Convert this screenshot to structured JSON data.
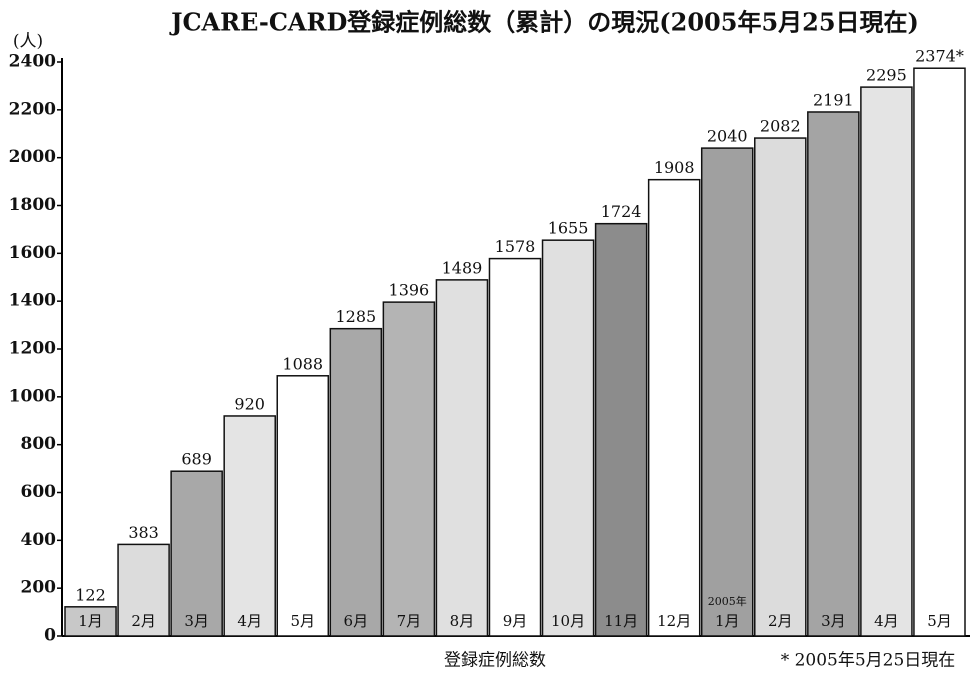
{
  "chart_data": {
    "type": "bar",
    "title": "JCARE-CARD登録症例総数（累計）の現況(2005年5月25日現在)",
    "y_unit": "(人)",
    "xlabel": "登録症例総数",
    "annotation": "* 2005年5月25日現在",
    "year_label": "2005年",
    "categories": [
      "1月",
      "2月",
      "3月",
      "4月",
      "5月",
      "6月",
      "7月",
      "8月",
      "9月",
      "10月",
      "11月",
      "12月",
      "1月",
      "2月",
      "3月",
      "4月",
      "5月"
    ],
    "values": [
      122,
      383,
      689,
      920,
      1088,
      1285,
      1396,
      1489,
      1578,
      1655,
      1724,
      1908,
      2040,
      2082,
      2191,
      2295,
      2374
    ],
    "value_labels": [
      "122",
      "383",
      "689",
      "920",
      "1088",
      "1285",
      "1396",
      "1489",
      "1578",
      "1655",
      "1724",
      "1908",
      "2040",
      "2082",
      "2191",
      "2295",
      "2374*"
    ],
    "colors": [
      "#c8c8c8",
      "#dcdcdc",
      "#a8a8a8",
      "#e4e4e4",
      "#ffffff",
      "#a8a8a8",
      "#b4b4b4",
      "#e0e0e0",
      "#ffffff",
      "#e0e0e0",
      "#8c8c8c",
      "#ffffff",
      "#a0a0a0",
      "#dcdcdc",
      "#a4a4a4",
      "#e4e4e4",
      "#ffffff"
    ],
    "ylim": [
      0,
      2400
    ],
    "yticks": [
      0,
      200,
      400,
      600,
      800,
      1000,
      1200,
      1400,
      1600,
      1800,
      2000,
      2200,
      2400
    ]
  }
}
